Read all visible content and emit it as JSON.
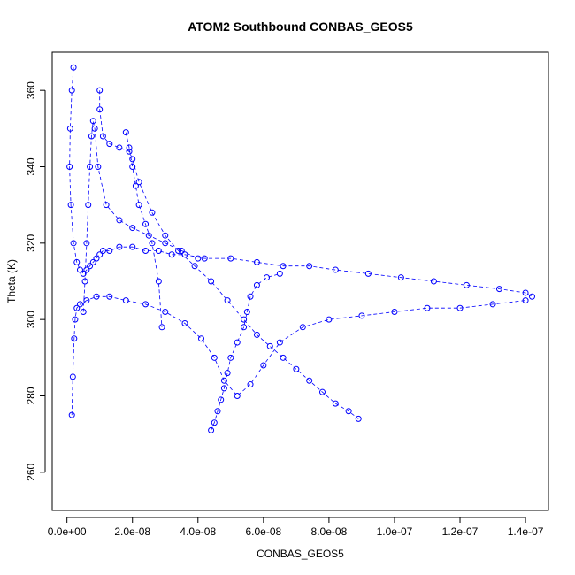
{
  "chart_data": {
    "type": "scatter",
    "title": "ATOM2 Southbound CONBAS_GEOS5",
    "xlabel": "CONBAS_GEOS5",
    "ylabel": "Theta (K)",
    "xlim": [
      -4.5e-09,
      1.47e-07
    ],
    "ylim": [
      250,
      370
    ],
    "x_ticks": [
      0,
      2e-08,
      4e-08,
      6e-08,
      8e-08,
      1e-07,
      1.2e-07,
      1.4e-07
    ],
    "x_tick_labels": [
      "0.0e+00",
      "2.0e-08",
      "4.0e-08",
      "6.0e-08",
      "8.0e-08",
      "1.0e-07",
      "1.2e-07",
      "1.4e-07"
    ],
    "y_ticks": [
      260,
      280,
      300,
      320,
      340,
      360
    ],
    "y_tick_labels": [
      "260",
      "280",
      "300",
      "320",
      "340",
      "360"
    ],
    "grid": false,
    "legend": "none",
    "color": "#0000ff",
    "series": [
      {
        "x": [
          2e-09,
          1.5e-09,
          1e-09,
          8e-10,
          1.2e-09,
          2e-09,
          3e-09,
          4e-09,
          5e-09,
          6e-09,
          7e-09,
          8e-09,
          9e-09,
          1e-08,
          1.1e-08,
          1.3e-08,
          1.6e-08,
          2e-08,
          2.4e-08,
          2.8e-08,
          3.2e-08,
          3.6e-08,
          4.2e-08,
          5e-08,
          5.8e-08,
          6.6e-08,
          7.4e-08,
          8.2e-08,
          9.2e-08,
          1.02e-07,
          1.12e-07,
          1.22e-07,
          1.32e-07,
          1.4e-07,
          1.42e-07
        ],
        "y": [
          366,
          360,
          350,
          340,
          330,
          320,
          315,
          313,
          312,
          313,
          314,
          315,
          316,
          317,
          318,
          318,
          319,
          319,
          318,
          318,
          317,
          317,
          316,
          316,
          315,
          314,
          314,
          313,
          312,
          311,
          310,
          309,
          308,
          307,
          306
        ]
      },
      {
        "x": [
          1e-08,
          1e-08,
          1.1e-08,
          1.3e-08,
          1.6e-08,
          1.9e-08,
          2e-08,
          2.2e-08,
          2.6e-08,
          3e-08,
          3.4e-08,
          3.9e-08,
          4.4e-08,
          4.9e-08,
          5.4e-08,
          5.8e-08,
          6.2e-08,
          6.6e-08,
          7e-08,
          7.4e-08,
          7.8e-08,
          8.2e-08,
          8.6e-08,
          8.9e-08
        ],
        "y": [
          360,
          355,
          348,
          346,
          345,
          344,
          342,
          336,
          328,
          322,
          318,
          314,
          310,
          305,
          300,
          296,
          293,
          290,
          287,
          284,
          281,
          278,
          276,
          274
        ]
      },
      {
        "x": [
          1.5e-09,
          1.8e-09,
          2.2e-09,
          2.5e-09,
          3e-09,
          4e-09,
          6e-09,
          9e-09,
          1.3e-08,
          1.8e-08,
          2.4e-08,
          3e-08,
          3.6e-08,
          4.1e-08,
          4.5e-08,
          4.8e-08,
          5.2e-08,
          5.6e-08,
          6e-08,
          6.5e-08,
          7.2e-08,
          8e-08,
          9e-08,
          1e-07,
          1.1e-07,
          1.2e-07,
          1.3e-07,
          1.4e-07
        ],
        "y": [
          275,
          285,
          295,
          300,
          303,
          304,
          305,
          306,
          306,
          305,
          304,
          302,
          299,
          295,
          290,
          284,
          280,
          283,
          288,
          294,
          298,
          300,
          301,
          302,
          303,
          303,
          304,
          305
        ]
      },
      {
        "x": [
          4.4e-08,
          4.5e-08,
          4.6e-08,
          4.7e-08,
          4.8e-08,
          4.9e-08,
          5e-08,
          5.2e-08,
          5.4e-08,
          5.5e-08,
          5.6e-08,
          5.8e-08,
          6.1e-08,
          6.5e-08
        ],
        "y": [
          271,
          273,
          276,
          279,
          282,
          286,
          290,
          294,
          298,
          302,
          306,
          309,
          311,
          312
        ]
      },
      {
        "x": [
          5e-09,
          5.5e-09,
          6e-09,
          6.5e-09,
          7e-09,
          7.5e-09,
          8e-09,
          8.5e-09,
          9.5e-09,
          1.2e-08,
          1.6e-08,
          2e-08,
          2.5e-08,
          3e-08,
          3.5e-08,
          4e-08
        ],
        "y": [
          302,
          310,
          320,
          330,
          340,
          348,
          352,
          350,
          340,
          330,
          326,
          324,
          322,
          320,
          318,
          316
        ]
      },
      {
        "x": [
          1.8e-08,
          1.9e-08,
          2e-08,
          2.1e-08,
          2.2e-08,
          2.4e-08,
          2.6e-08,
          2.8e-08,
          2.9e-08
        ],
        "y": [
          349,
          345,
          340,
          335,
          330,
          325,
          320,
          310,
          298
        ]
      }
    ]
  }
}
